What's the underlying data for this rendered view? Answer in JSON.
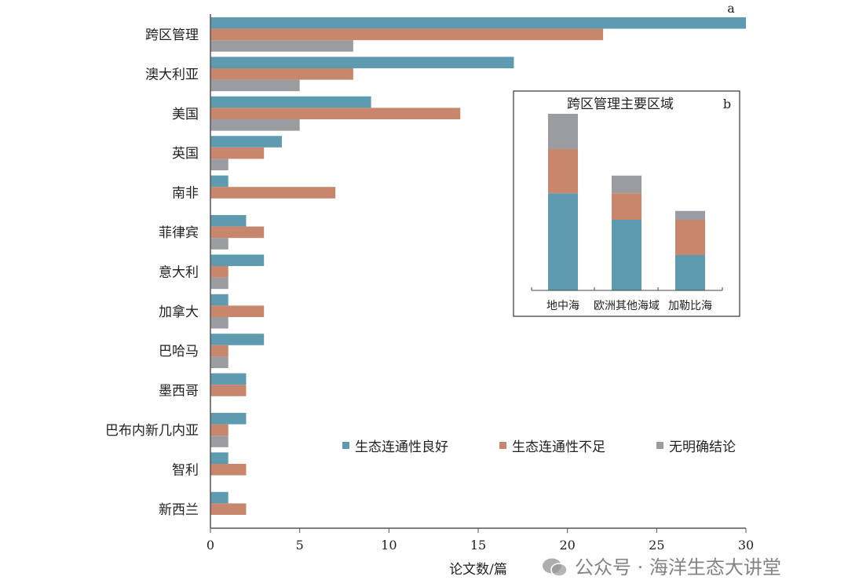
{
  "chart_data": [
    {
      "type": "bar",
      "orientation": "horizontal",
      "panel_label": "a",
      "categories": [
        "跨区管理",
        "澳大利亚",
        "美国",
        "英国",
        "南非",
        "菲律宾",
        "意大利",
        "加拿大",
        "巴哈马",
        "墨西哥",
        "巴布内新几内亚",
        "智利",
        "新西兰"
      ],
      "series": [
        {
          "name": "生态连通性良好",
          "color": "#5e9bb0",
          "values": [
            30,
            17,
            9,
            4,
            1,
            2,
            3,
            1,
            3,
            2,
            2,
            1,
            1
          ]
        },
        {
          "name": "生态连通性不足",
          "color": "#c8866c",
          "values": [
            22,
            8,
            14,
            3,
            7,
            3,
            1,
            3,
            1,
            2,
            1,
            2,
            2
          ]
        },
        {
          "name": "无明确结论",
          "color": "#9a9c9f",
          "values": [
            8,
            5,
            5,
            1,
            0,
            1,
            1,
            1,
            1,
            0,
            1,
            0,
            0
          ]
        }
      ],
      "xlabel": "论文数/篇",
      "ylabel": "",
      "xlim": [
        0,
        30
      ],
      "xticks": [
        0,
        5,
        10,
        15,
        20,
        25,
        30
      ],
      "grid": false,
      "legend": "bottom-center"
    },
    {
      "type": "bar",
      "stacked": true,
      "panel_label": "b",
      "title": "跨区管理主要区域",
      "categories": [
        "地中海",
        "欧洲其他海域",
        "加勒比海"
      ],
      "series": [
        {
          "name": "生态连通性良好",
          "color": "#5e9bb0",
          "values": [
            11,
            8,
            4
          ]
        },
        {
          "name": "生态连通性不足",
          "color": "#c8866c",
          "values": [
            5,
            3,
            4
          ]
        },
        {
          "name": "无明确结论",
          "color": "#9a9c9f",
          "values": [
            4,
            2,
            1
          ]
        }
      ],
      "grid": false
    }
  ],
  "watermark": {
    "text": "公众号 · 海洋生态大讲堂"
  }
}
